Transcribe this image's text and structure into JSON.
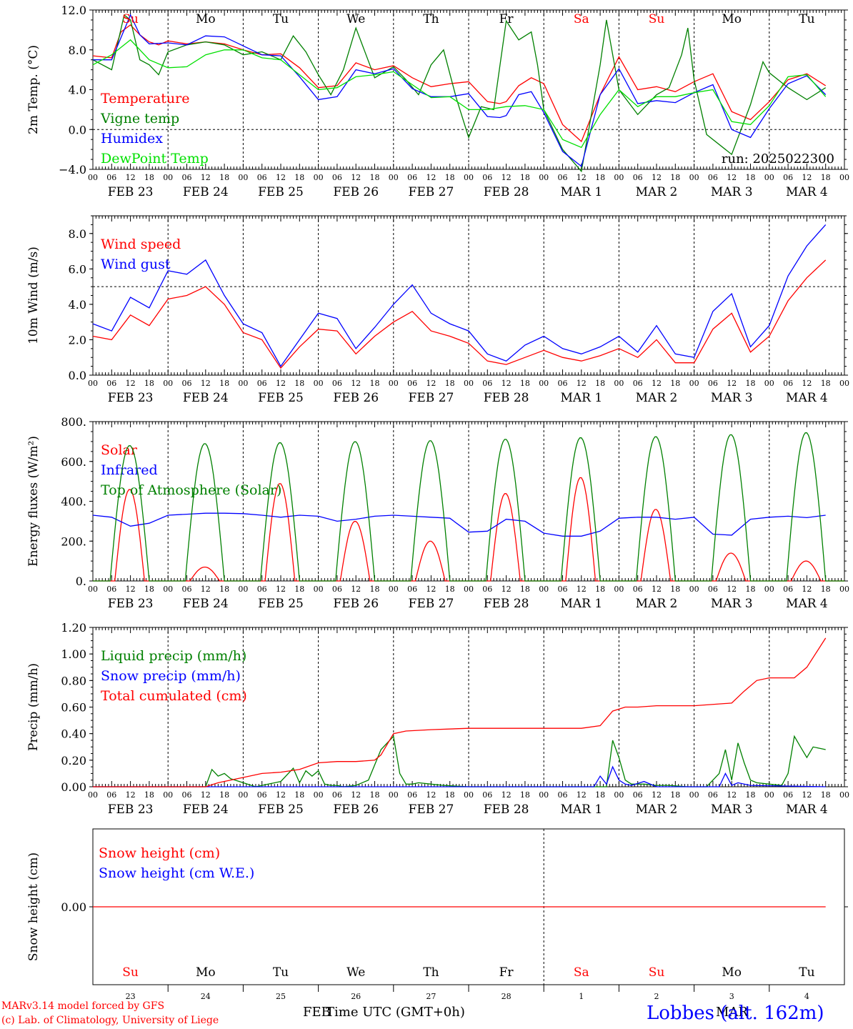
{
  "run_label": "run: 2025022300",
  "footer": {
    "model": "MARv3.14 model forced by GFS",
    "copyright": "(c) Lab. of Climatology, University of Liege",
    "xlabel": "Time UTC (GMT+0h)",
    "month_feb": "FEB",
    "month_mar": "MAR",
    "station": "Lobbes (alt. 162m)"
  },
  "colors": {
    "red": "#ff0000",
    "green": "#008000",
    "blue": "#0000ff",
    "lightgreen": "#00e000",
    "weekend": "#ff0000",
    "weekday": "#000000"
  },
  "days": [
    "Su",
    "Mo",
    "Tu",
    "We",
    "Th",
    "Fr",
    "Sa",
    "Su",
    "Mo",
    "Tu"
  ],
  "day_weekend": [
    true,
    false,
    false,
    false,
    false,
    false,
    true,
    true,
    false,
    false
  ],
  "dates": [
    "FEB 23",
    "FEB 24",
    "FEB 25",
    "FEB 26",
    "FEB 27",
    "FEB 28",
    "MAR  1",
    "MAR  2",
    "MAR  3",
    "MAR  4"
  ],
  "date_numbers": [
    "23",
    "24",
    "25",
    "26",
    "27",
    "28",
    "1",
    "2",
    "3",
    "4"
  ],
  "hour_ticks": [
    "00",
    "06",
    "12",
    "18"
  ],
  "chart_data": [
    {
      "type": "line",
      "ylabel": "2m Temp. (°C)",
      "ylim": [
        -4,
        12
      ],
      "yticks": [
        "12.0",
        "8.0",
        "4.0",
        "0.0",
        "−4.0"
      ],
      "ytick_values": [
        12,
        8,
        4,
        0,
        -4
      ],
      "hlines": [
        0
      ],
      "x_unit": "hours since 2025-02-23 00 UTC",
      "series": [
        {
          "name": "Temperature",
          "color": "#ff0000",
          "x": [
            0,
            6,
            9,
            12,
            15,
            18,
            21,
            24,
            30,
            36,
            42,
            48,
            54,
            60,
            66,
            72,
            78,
            84,
            90,
            96,
            102,
            108,
            114,
            120,
            126,
            130,
            132,
            136,
            140,
            144,
            150,
            156,
            162,
            168,
            174,
            180,
            186,
            192,
            198,
            204,
            210,
            216,
            222,
            228,
            234
          ],
          "y": [
            7.4,
            7.2,
            9.8,
            10.5,
            9.5,
            8.8,
            8.5,
            8.9,
            8.6,
            8.8,
            8.6,
            8.0,
            7.5,
            7.6,
            6.2,
            4.2,
            4.4,
            6.7,
            6.0,
            6.4,
            5.2,
            4.3,
            4.6,
            4.8,
            2.8,
            2.6,
            2.8,
            4.4,
            5.2,
            4.6,
            0.5,
            -1.2,
            3.5,
            7.3,
            4.0,
            4.3,
            3.8,
            4.8,
            5.6,
            1.8,
            1.0,
            2.8,
            5.0,
            5.6,
            4.4
          ]
        },
        {
          "name": "Vigne temp",
          "color": "#008000",
          "x": [
            0,
            6,
            10,
            12,
            15,
            18,
            21,
            24,
            30,
            36,
            42,
            48,
            54,
            60,
            64,
            68,
            72,
            76,
            80,
            84,
            90,
            96,
            100,
            104,
            108,
            112,
            116,
            120,
            124,
            128,
            132,
            136,
            140,
            142,
            144,
            150,
            156,
            162,
            164,
            168,
            174,
            180,
            184,
            188,
            190,
            192,
            196,
            204,
            210,
            214,
            216,
            222,
            228,
            234
          ],
          "y": [
            7.0,
            6.0,
            11.5,
            11.0,
            7.0,
            6.5,
            5.5,
            7.8,
            8.5,
            8.8,
            8.5,
            7.5,
            7.8,
            7.0,
            9.4,
            7.8,
            5.5,
            3.5,
            6.0,
            10.2,
            5.2,
            6.3,
            5.0,
            3.5,
            6.5,
            8.0,
            3.2,
            -0.8,
            2.3,
            2.0,
            10.9,
            9.0,
            9.8,
            6.5,
            2.0,
            -2.0,
            -4.2,
            6.5,
            11.0,
            4.0,
            1.5,
            3.5,
            4.2,
            7.5,
            10.2,
            5.0,
            -0.5,
            -2.5,
            2.5,
            6.8,
            5.7,
            4.2,
            3.0,
            4.2
          ]
        },
        {
          "name": "Humidex",
          "color": "#0000ff",
          "x": [
            0,
            6,
            12,
            15,
            18,
            24,
            30,
            36,
            42,
            48,
            54,
            60,
            66,
            72,
            78,
            84,
            90,
            96,
            102,
            108,
            114,
            120,
            126,
            130,
            132,
            136,
            140,
            144,
            150,
            156,
            162,
            168,
            174,
            180,
            186,
            192,
            198,
            204,
            210,
            216,
            222,
            228,
            234
          ],
          "y": [
            7.0,
            7.0,
            11.5,
            9.5,
            8.6,
            8.7,
            8.5,
            9.4,
            9.3,
            8.4,
            7.5,
            7.4,
            5.3,
            3.0,
            3.3,
            6.0,
            5.6,
            6.1,
            4.1,
            3.3,
            3.3,
            3.6,
            1.3,
            1.2,
            1.4,
            3.5,
            3.8,
            1.7,
            -2.2,
            -3.7,
            3.5,
            6.1,
            2.6,
            2.9,
            2.7,
            3.7,
            4.5,
            0.0,
            -0.8,
            2.1,
            4.6,
            5.4,
            3.5
          ]
        },
        {
          "name": "DewPoint Temp",
          "color": "#00e000",
          "x": [
            0,
            6,
            12,
            18,
            24,
            30,
            36,
            42,
            48,
            54,
            60,
            66,
            72,
            78,
            84,
            90,
            96,
            102,
            108,
            114,
            120,
            126,
            132,
            138,
            144,
            150,
            156,
            162,
            168,
            174,
            180,
            186,
            192,
            198,
            204,
            210,
            216,
            222,
            228,
            234
          ],
          "y": [
            6.5,
            7.5,
            9.0,
            7.0,
            6.2,
            6.3,
            7.5,
            8.0,
            8.0,
            7.2,
            7.0,
            5.5,
            4.0,
            4.2,
            5.3,
            5.5,
            5.8,
            4.5,
            3.2,
            3.3,
            2.0,
            2.0,
            2.3,
            2.4,
            2.0,
            -1.0,
            -1.8,
            1.5,
            4.0,
            2.3,
            3.3,
            3.3,
            3.7,
            4.0,
            0.8,
            0.5,
            2.4,
            5.3,
            5.5,
            3.3
          ]
        }
      ]
    },
    {
      "type": "line",
      "ylabel": "10m Wind (m/s)",
      "ylim": [
        0,
        9
      ],
      "yticks": [
        "8.0",
        "6.0",
        "4.0",
        "2.0",
        "0.0"
      ],
      "ytick_values": [
        8,
        6,
        4,
        2,
        0
      ],
      "hlines": [
        5
      ],
      "series": [
        {
          "name": "Wind speed",
          "color": "#ff0000",
          "x": [
            0,
            6,
            12,
            18,
            24,
            30,
            36,
            42,
            48,
            54,
            60,
            66,
            72,
            78,
            84,
            90,
            96,
            102,
            108,
            114,
            120,
            126,
            132,
            138,
            144,
            150,
            156,
            162,
            168,
            174,
            180,
            186,
            192,
            198,
            204,
            210,
            216,
            222,
            228,
            234
          ],
          "y": [
            2.2,
            2.0,
            3.4,
            2.8,
            4.3,
            4.5,
            5.0,
            4.0,
            2.4,
            2.0,
            0.4,
            1.6,
            2.6,
            2.5,
            1.2,
            2.2,
            3.0,
            3.6,
            2.5,
            2.2,
            1.8,
            0.8,
            0.6,
            1.0,
            1.4,
            1.0,
            0.8,
            1.1,
            1.5,
            1.0,
            2.0,
            0.7,
            0.7,
            2.6,
            3.5,
            1.3,
            2.2,
            4.2,
            5.5,
            6.5
          ]
        },
        {
          "name": "Wind gust",
          "color": "#0000ff",
          "x": [
            0,
            6,
            12,
            18,
            24,
            30,
            36,
            42,
            48,
            54,
            60,
            66,
            72,
            78,
            84,
            90,
            96,
            102,
            108,
            114,
            120,
            126,
            132,
            138,
            144,
            150,
            156,
            162,
            168,
            174,
            180,
            186,
            192,
            198,
            204,
            210,
            216,
            222,
            228,
            234
          ],
          "y": [
            2.9,
            2.5,
            4.4,
            3.8,
            5.9,
            5.7,
            6.5,
            4.5,
            2.9,
            2.4,
            0.5,
            2.0,
            3.5,
            3.2,
            1.5,
            2.7,
            4.0,
            5.1,
            3.5,
            2.9,
            2.5,
            1.2,
            0.8,
            1.7,
            2.2,
            1.5,
            1.2,
            1.6,
            2.2,
            1.3,
            2.8,
            1.2,
            1.0,
            3.6,
            4.6,
            1.6,
            2.8,
            5.6,
            7.3,
            8.5
          ]
        }
      ]
    },
    {
      "type": "line",
      "ylabel": "Energy fluxes (W/m²)",
      "ylim": [
        0,
        800
      ],
      "yticks": [
        "800.",
        "600.",
        "400.",
        "200.",
        "0."
      ],
      "ytick_values": [
        800,
        600,
        400,
        200,
        0
      ],
      "series": [
        {
          "name": "Solar",
          "color": "#ff0000",
          "solar_peak": [
            460,
            70,
            490,
            300,
            200,
            440,
            520,
            360,
            140,
            100
          ]
        },
        {
          "name": "Infrared",
          "color": "#0000ff",
          "x": [
            0,
            6,
            12,
            18,
            24,
            30,
            36,
            42,
            48,
            54,
            60,
            66,
            72,
            78,
            84,
            90,
            96,
            102,
            108,
            114,
            120,
            126,
            132,
            138,
            144,
            150,
            156,
            162,
            168,
            174,
            180,
            186,
            192,
            198,
            204,
            210,
            216,
            222,
            228,
            234
          ],
          "y": [
            330,
            320,
            275,
            290,
            330,
            335,
            340,
            340,
            338,
            330,
            320,
            330,
            325,
            300,
            310,
            325,
            330,
            325,
            320,
            315,
            245,
            250,
            310,
            300,
            240,
            225,
            225,
            250,
            315,
            320,
            320,
            310,
            320,
            235,
            230,
            310,
            320,
            325,
            318,
            330
          ]
        },
        {
          "name": "Top of Atmosphere (Solar)",
          "color": "#008000",
          "toa_peak": [
            680,
            690,
            695,
            700,
            705,
            712,
            720,
            725,
            735,
            745
          ]
        }
      ]
    },
    {
      "type": "line",
      "ylabel": "Precip (mm/h)",
      "ylim": [
        0,
        1.2
      ],
      "yticks": [
        "1.20",
        "1.00",
        "0.80",
        "0.60",
        "0.40",
        "0.20",
        "0.00"
      ],
      "ytick_values": [
        1.2,
        1.0,
        0.8,
        0.6,
        0.4,
        0.2,
        0.0
      ],
      "series": [
        {
          "name": "Liquid precip (mm/h)",
          "color": "#008000",
          "x": [
            0,
            12,
            36,
            38,
            40,
            42,
            44,
            48,
            52,
            56,
            60,
            64,
            66,
            68,
            70,
            72,
            74,
            76,
            78,
            80,
            84,
            88,
            92,
            96,
            98,
            100,
            102,
            104,
            108,
            112,
            120,
            132,
            144,
            164,
            166,
            168,
            170,
            172,
            176,
            180,
            184,
            190,
            196,
            200,
            202,
            204,
            206,
            208,
            210,
            212,
            216,
            220,
            222,
            224,
            226,
            228,
            230,
            232,
            234
          ],
          "y": [
            0,
            0,
            0,
            0.13,
            0.08,
            0.1,
            0.06,
            0.03,
            0,
            0.02,
            0.04,
            0.14,
            0.03,
            0.12,
            0.08,
            0.12,
            0.02,
            0.01,
            0.01,
            0,
            0.01,
            0.05,
            0.28,
            0.38,
            0.1,
            0.02,
            0.02,
            0.03,
            0.02,
            0.01,
            0,
            0,
            0,
            0,
            0.35,
            0.22,
            0.05,
            0.02,
            0.02,
            0.01,
            0.01,
            0,
            0,
            0.1,
            0.28,
            0.05,
            0.33,
            0.18,
            0.05,
            0.03,
            0.02,
            0.01,
            0.1,
            0.38,
            0.3,
            0.22,
            0.3,
            0.29,
            0.28
          ]
        },
        {
          "name": "Snow precip (mm/h)",
          "color": "#0000ff",
          "x": [
            0,
            160,
            162,
            164,
            166,
            168,
            170,
            172,
            176,
            180,
            200,
            202,
            204,
            206,
            210,
            234
          ],
          "y": [
            0,
            0,
            0.08,
            0.02,
            0.15,
            0.05,
            0.02,
            0.01,
            0.04,
            0,
            0,
            0.1,
            0.01,
            0.03,
            0.01,
            0
          ]
        },
        {
          "name": "Total cumulated (cm)",
          "color": "#ff0000",
          "x": [
            0,
            36,
            40,
            48,
            54,
            60,
            66,
            72,
            78,
            84,
            90,
            92,
            96,
            100,
            108,
            120,
            132,
            144,
            156,
            162,
            166,
            170,
            174,
            180,
            192,
            204,
            208,
            212,
            216,
            224,
            228,
            234
          ],
          "y": [
            0,
            0,
            0.03,
            0.07,
            0.1,
            0.11,
            0.13,
            0.18,
            0.19,
            0.19,
            0.2,
            0.24,
            0.4,
            0.42,
            0.43,
            0.44,
            0.44,
            0.44,
            0.44,
            0.46,
            0.57,
            0.6,
            0.6,
            0.61,
            0.61,
            0.63,
            0.72,
            0.8,
            0.82,
            0.82,
            0.9,
            1.12
          ]
        }
      ]
    },
    {
      "type": "line",
      "ylabel": "Snow height (cm)",
      "yticks": [
        "0.00"
      ],
      "ytick_values": [
        0
      ],
      "series": [
        {
          "name": "Snow height (cm)",
          "color": "#ff0000",
          "x": [
            0,
            234
          ],
          "y": [
            0,
            0
          ]
        },
        {
          "name": "Snow height (cm W.E.)",
          "color": "#0000ff",
          "x": [
            0,
            234
          ],
          "y": [
            0,
            0
          ]
        }
      ]
    }
  ]
}
